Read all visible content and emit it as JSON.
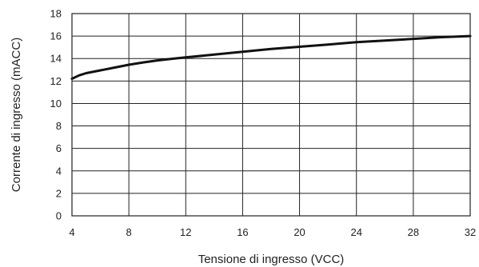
{
  "chart_data": {
    "type": "line",
    "title": "",
    "xlabel": "Tensione di ingresso (VCC)",
    "ylabel": "Corrente di ingresso (mACC)",
    "xlim": [
      4,
      32
    ],
    "ylim": [
      0,
      18
    ],
    "x_ticks": [
      4,
      8,
      12,
      16,
      20,
      24,
      28,
      32
    ],
    "y_ticks": [
      0,
      2,
      4,
      6,
      8,
      10,
      12,
      14,
      16,
      18
    ],
    "grid": true,
    "series": [
      {
        "x": [
          4,
          4.5,
          5,
          6,
          7,
          8,
          9,
          10,
          11,
          12,
          14,
          16,
          18,
          20,
          22,
          24,
          26,
          28,
          30,
          32
        ],
        "y": [
          12.2,
          12.5,
          12.7,
          12.95,
          13.2,
          13.45,
          13.65,
          13.83,
          13.97,
          14.1,
          14.35,
          14.6,
          14.85,
          15.05,
          15.25,
          15.45,
          15.6,
          15.75,
          15.9,
          16.0
        ]
      }
    ]
  }
}
